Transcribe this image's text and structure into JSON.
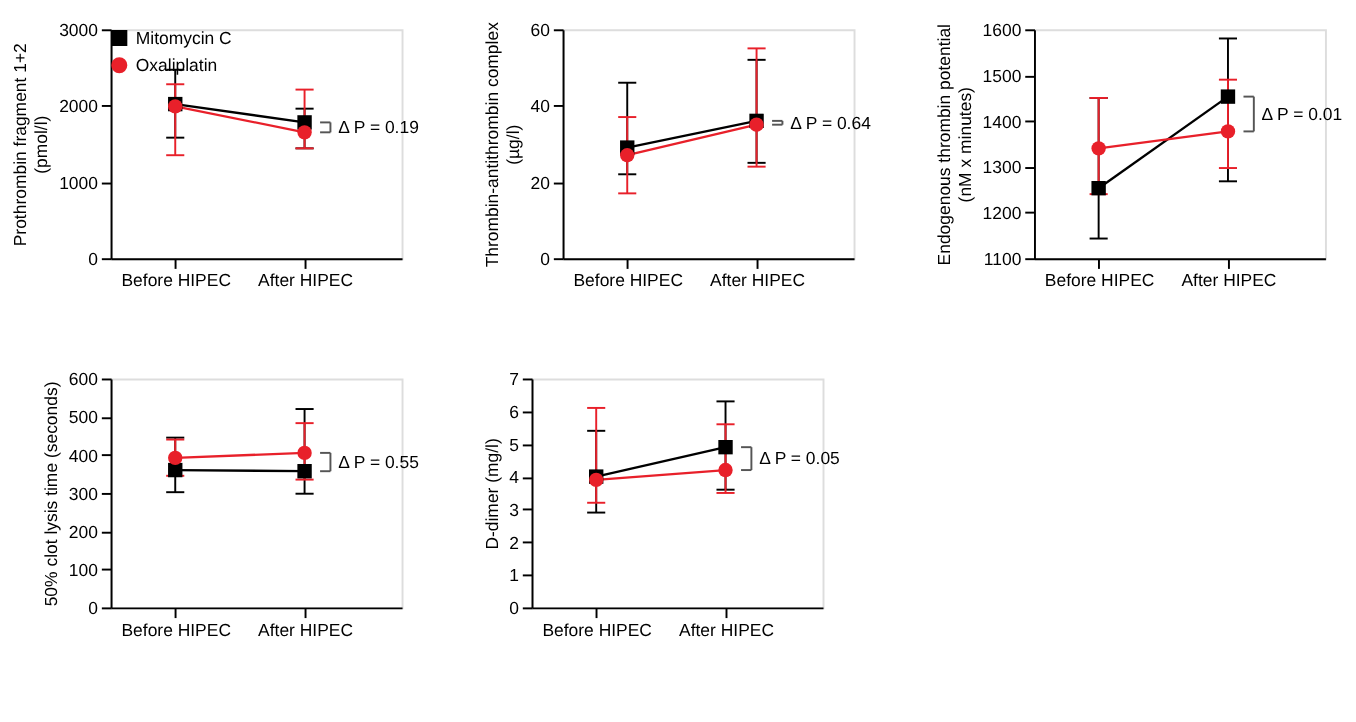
{
  "chart_data": [
    {
      "type": "line",
      "ylabel": "Prothrombin fragment 1+2\n(pmol/l)",
      "categories": [
        "Before HIPEC",
        "After HIPEC"
      ],
      "ylim": [
        0,
        3000
      ],
      "yticks": [
        0,
        1000,
        2000,
        3000
      ],
      "grid": false,
      "legend": "top left",
      "line_style": "solid",
      "series": [
        {
          "name": "Mitomycin C",
          "color": "#000000",
          "marker": "square",
          "values": [
            2020,
            1780
          ],
          "errors": [
            [
              1580,
              2470
            ],
            [
              1440,
              1960
            ]
          ]
        },
        {
          "name": "Oxaliplatin",
          "color": "#e8202a",
          "marker": "circle",
          "values": [
            1990,
            1650
          ],
          "errors": [
            [
              1350,
              2280
            ],
            [
              1440,
              2210
            ]
          ]
        }
      ],
      "annotations": [
        {
          "text": "Δ P = 0.19",
          "x": "After HIPEC",
          "y": 1715
        }
      ]
    },
    {
      "type": "line",
      "ylabel": "Thrombin-antithrombin complex\n(µg/l)",
      "categories": [
        "Before HIPEC",
        "After HIPEC"
      ],
      "ylim": [
        0,
        60
      ],
      "yticks": [
        0,
        20,
        40,
        60
      ],
      "grid": false,
      "legend": false,
      "line_style": "solid",
      "series": [
        {
          "color": "#000000",
          "marker": "square",
          "values": [
            29,
            36
          ],
          "errors": [
            [
              22,
              46
            ],
            [
              25,
              52
            ]
          ]
        },
        {
          "color": "#e8202a",
          "marker": "circle",
          "values": [
            27,
            35
          ],
          "errors": [
            [
              17,
              37
            ],
            [
              24,
              55
            ]
          ]
        }
      ],
      "annotations": [
        {
          "text": "Δ P = 0.64",
          "x": "After HIPEC",
          "y": 35.5
        }
      ]
    },
    {
      "type": "line",
      "ylabel": "Endogenous thrombin potential\n(nM x minutes)",
      "categories": [
        "Before HIPEC",
        "After HIPEC"
      ],
      "ylim": [
        1100,
        1600
      ],
      "yticks": [
        1100,
        1200,
        1300,
        1400,
        1500,
        1600
      ],
      "grid": false,
      "legend": false,
      "line_style": "solid",
      "series": [
        {
          "color": "#000000",
          "marker": "square",
          "values": [
            1253,
            1453
          ],
          "errors": [
            [
              1143,
              1450
            ],
            [
              1268,
              1580
            ]
          ]
        },
        {
          "color": "#e8202a",
          "marker": "circle",
          "values": [
            1340,
            1377
          ],
          "errors": [
            [
              1240,
              1450
            ],
            [
              1297,
              1490
            ]
          ]
        }
      ],
      "annotations": [
        {
          "text": "Δ P = 0.01",
          "x": "After HIPEC",
          "y": 1415
        }
      ]
    },
    {
      "type": "line",
      "ylabel": "50% clot lysis time (seconds)",
      "categories": [
        "Before HIPEC",
        "After HIPEC"
      ],
      "ylim": [
        0,
        600
      ],
      "yticks": [
        0,
        100,
        200,
        300,
        400,
        500,
        600
      ],
      "grid": false,
      "legend": false,
      "line_style": "solid",
      "series": [
        {
          "color": "#000000",
          "marker": "square",
          "values": [
            360,
            357
          ],
          "errors": [
            [
              302,
              445
            ],
            [
              298,
              520
            ]
          ]
        },
        {
          "color": "#e8202a",
          "marker": "circle",
          "values": [
            392,
            405
          ],
          "errors": [
            [
              345,
              440
            ],
            [
              335,
              483
            ]
          ]
        }
      ],
      "annotations": [
        {
          "text": "Δ P = 0.55",
          "x": "After HIPEC",
          "y": 381
        }
      ]
    },
    {
      "type": "line",
      "ylabel": "D-dimer (mg/l)",
      "categories": [
        "Before HIPEC",
        "After HIPEC"
      ],
      "ylim": [
        0,
        7
      ],
      "yticks": [
        0,
        1,
        2,
        3,
        4,
        5,
        6,
        7
      ],
      "grid": false,
      "legend": false,
      "line_style": "solid",
      "series": [
        {
          "color": "#000000",
          "marker": "square",
          "values": [
            4.0,
            4.9
          ],
          "errors": [
            [
              2.9,
              5.4
            ],
            [
              3.6,
              6.3
            ]
          ]
        },
        {
          "color": "#e8202a",
          "marker": "circle",
          "values": [
            3.9,
            4.2
          ],
          "errors": [
            [
              3.2,
              6.1
            ],
            [
              3.5,
              5.6
            ]
          ]
        }
      ],
      "annotations": [
        {
          "text": "Δ P = 0.05",
          "x": "After HIPEC",
          "y": 4.55
        }
      ]
    }
  ]
}
